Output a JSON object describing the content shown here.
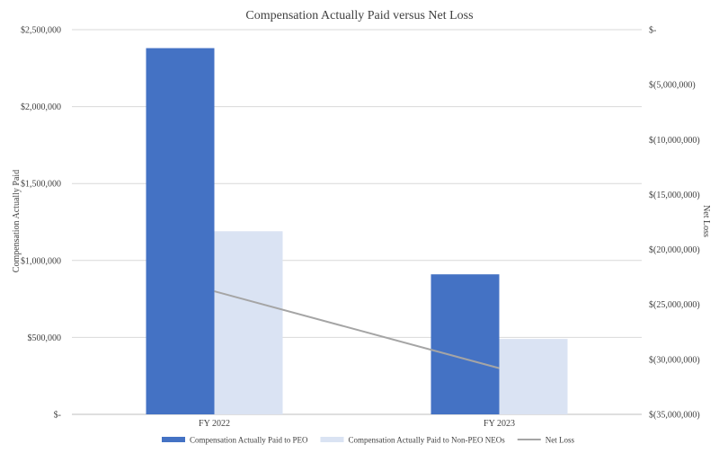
{
  "chart_data": {
    "type": "bar",
    "title": "Compensation Actually Paid versus Net Loss",
    "categories": [
      "FY 2022",
      "FY 2023"
    ],
    "series": [
      {
        "name": "Compensation Actually Paid to PEO",
        "type": "bar",
        "axis": "left",
        "values": [
          2380000,
          910000
        ],
        "color": "#4472c4"
      },
      {
        "name": "Compensation Actually Paid to Non-PEO NEOs",
        "type": "bar",
        "axis": "left",
        "values": [
          1190000,
          490000
        ],
        "color": "#dae3f3"
      },
      {
        "name": "Net Loss",
        "type": "line",
        "axis": "right",
        "values": [
          -23800000,
          -30800000
        ],
        "color": "#a5a5a5"
      }
    ],
    "ylabel": "Compensation Actually Paid",
    "y2label": "Net Loss",
    "ylim": [
      0,
      2500000
    ],
    "y2lim": [
      -35000000,
      0
    ],
    "yticks": [
      {
        "value": 0,
        "label": "$-"
      },
      {
        "value": 500000,
        "label": "$500,000"
      },
      {
        "value": 1000000,
        "label": "$1,000,000"
      },
      {
        "value": 1500000,
        "label": "$1,500,000"
      },
      {
        "value": 2000000,
        "label": "$2,000,000"
      },
      {
        "value": 2500000,
        "label": "$2,500,000"
      }
    ],
    "y2ticks": [
      {
        "value": 0,
        "label": "$-"
      },
      {
        "value": -5000000,
        "label": "$(5,000,000)"
      },
      {
        "value": -10000000,
        "label": "$(10,000,000)"
      },
      {
        "value": -15000000,
        "label": "$(15,000,000)"
      },
      {
        "value": -20000000,
        "label": "$(20,000,000)"
      },
      {
        "value": -25000000,
        "label": "$(25,000,000)"
      },
      {
        "value": -30000000,
        "label": "$(30,000,000)"
      },
      {
        "value": -35000000,
        "label": "$(35,000,000)"
      }
    ],
    "grid": true,
    "legend": "bottom"
  }
}
